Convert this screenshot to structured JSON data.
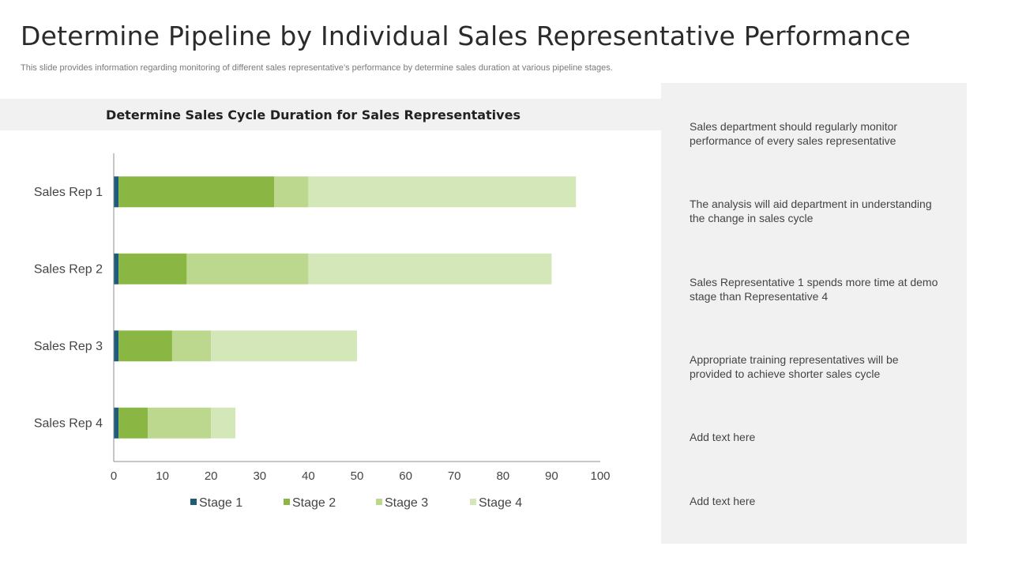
{
  "slide": {
    "title": "Determine Pipeline by Individual Sales Representative Performance",
    "subtitle": "This slide provides information regarding monitoring of different sales representative’s performance by determine sales duration at various pipeline stages."
  },
  "chart_data": {
    "type": "bar",
    "orientation": "horizontal",
    "stacked": true,
    "title": "Determine Sales Cycle Duration for Sales Representatives",
    "categories": [
      "Sales Rep 1",
      "Sales Rep 2",
      "Sales Rep 3",
      "Sales Rep 4"
    ],
    "series": [
      {
        "name": "Stage 1",
        "color": "#1f5c7a",
        "values": [
          1,
          1,
          1,
          1
        ]
      },
      {
        "name": "Stage 2",
        "color": "#8ab744",
        "values": [
          32,
          14,
          11,
          6
        ]
      },
      {
        "name": "Stage 3",
        "color": "#bcd88f",
        "values": [
          7,
          25,
          8,
          13
        ]
      },
      {
        "name": "Stage 4",
        "color": "#d4e7b8",
        "values": [
          55,
          50,
          30,
          5
        ]
      }
    ],
    "xlim": [
      0,
      100
    ],
    "xticks": [
      0,
      10,
      20,
      30,
      40,
      50,
      60,
      70,
      80,
      90,
      100
    ],
    "xlabel": "",
    "ylabel": "",
    "legend": "bottom",
    "grid": false
  },
  "notes": [
    "Sales department should regularly monitor performance of every sales representative",
    "The analysis will aid department in understanding the change in sales cycle",
    "Sales Representative 1 spends more time at demo stage than Representative 4",
    "Appropriate training representatives will be provided to achieve shorter sales cycle",
    "Add text here",
    "Add text here"
  ]
}
